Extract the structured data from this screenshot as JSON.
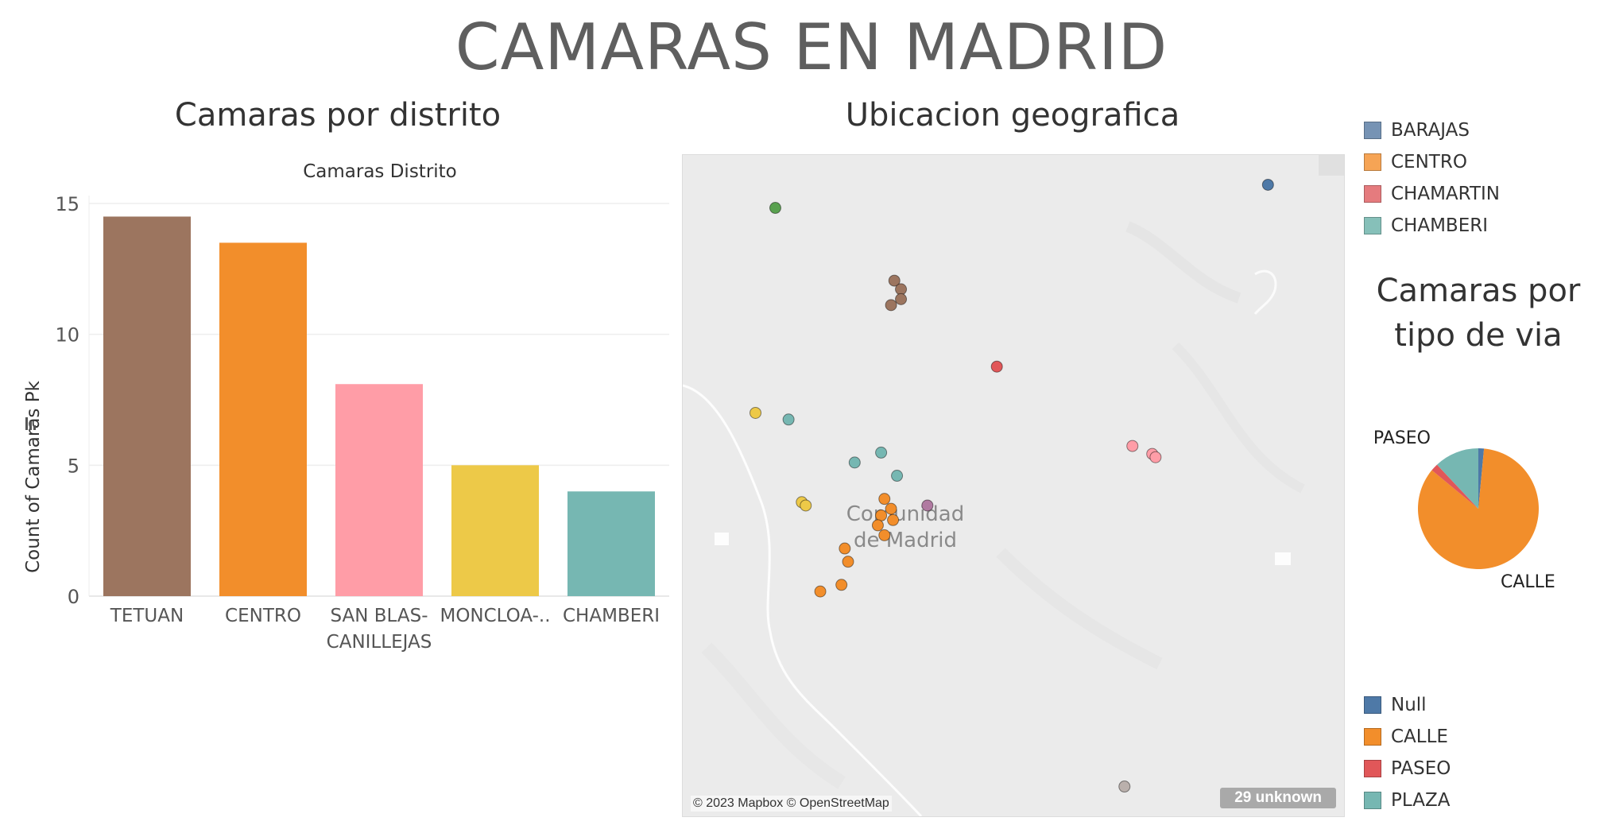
{
  "page": {
    "title": "CAMARAS EN MADRID"
  },
  "bar_section": {
    "title": "Camaras por distrito"
  },
  "map_section": {
    "title": "Ubicacion geografica",
    "place_label_line1": "Comunidad",
    "place_label_line2": "de Madrid",
    "attribution": "© 2023 Mapbox © OpenStreetMap",
    "unknown_badge": "29 unknown"
  },
  "district_legend": {
    "items": [
      {
        "label": "BARAJAS",
        "color": "#7693b4"
      },
      {
        "label": "CENTRO",
        "color": "#f6a455"
      },
      {
        "label": "CHAMARTIN",
        "color": "#e57b7e"
      },
      {
        "label": "CHAMBERI",
        "color": "#86c0b9"
      }
    ]
  },
  "pie_section": {
    "title_line1": "Camaras por",
    "title_line2": "tipo de via"
  },
  "via_legend": {
    "items": [
      {
        "label": "Null",
        "color": "#4e79a7"
      },
      {
        "label": "CALLE",
        "color": "#f28e2b"
      },
      {
        "label": "PASEO",
        "color": "#e15759"
      },
      {
        "label": "PLAZA",
        "color": "#76b7b2"
      }
    ]
  },
  "map_points": [
    {
      "district": "BARAJAS",
      "color": "#4e79a7"
    },
    {
      "district": "TETUAN",
      "color": "#9c755f"
    },
    {
      "district": "CENTRO",
      "color": "#f28e2b"
    },
    {
      "district": "CHAMARTIN",
      "color": "#e15759"
    },
    {
      "district": "CHAMBERI",
      "color": "#76b7b2"
    },
    {
      "district": "SAN BLAS-CANILLEJAS",
      "color": "#ff9da7"
    },
    {
      "district": "MONCLOA-ARAVACA",
      "color": "#edc948"
    },
    {
      "district": "OTHER-GREEN",
      "color": "#59a14f"
    },
    {
      "district": "OTHER-PURPLE",
      "color": "#b07aa1"
    },
    {
      "district": "OTHER-GREY",
      "color": "#bab0ac"
    }
  ],
  "chart_data": [
    {
      "type": "bar",
      "title": "Camaras Distrito",
      "ylabel": "Count of Camaras Pk",
      "xlabel": "",
      "categories": [
        "TETUAN",
        "CENTRO",
        "SAN BLAS-CANILLEJAS",
        "MONCLOA-..",
        "CHAMBERI"
      ],
      "category_lines": [
        [
          "TETUAN"
        ],
        [
          "CENTRO"
        ],
        [
          "SAN BLAS-",
          "CANILLEJAS"
        ],
        [
          "MONCLOA-.."
        ],
        [
          "CHAMBERI"
        ]
      ],
      "values": [
        14.5,
        13.5,
        8.1,
        5.0,
        4.0
      ],
      "colors": [
        "#9c755f",
        "#f28e2b",
        "#ff9da7",
        "#edc948",
        "#76b7b2"
      ],
      "yticks": [
        0,
        5,
        10,
        15
      ],
      "ylim": [
        0,
        15
      ],
      "grid": true,
      "legend": "none"
    },
    {
      "type": "pie",
      "title": "",
      "labels": [
        "Null",
        "CALLE",
        "PASEO",
        "PLAZA"
      ],
      "values": [
        1.5,
        84.5,
        2.0,
        12.0
      ],
      "colors": [
        "#4e79a7",
        "#f28e2b",
        "#e15759",
        "#76b7b2"
      ],
      "slice_labels_shown": [
        "PASEO",
        "CALLE"
      ],
      "legend": "bottom-right"
    },
    {
      "type": "scatter",
      "title": "",
      "xlabel": "",
      "ylabel": "",
      "series": [
        {
          "group": "BARAJAS",
          "x": [
            0.885
          ],
          "y": [
            0.955
          ]
        },
        {
          "group": "TETUAN",
          "x": [
            0.32,
            0.33,
            0.33,
            0.315
          ],
          "y": [
            0.81,
            0.797,
            0.782,
            0.773
          ]
        },
        {
          "group": "CENTRO",
          "x": [
            0.305,
            0.315,
            0.318,
            0.3,
            0.295,
            0.305,
            0.245,
            0.25,
            0.24,
            0.208
          ],
          "y": [
            0.48,
            0.465,
            0.448,
            0.455,
            0.44,
            0.425,
            0.405,
            0.385,
            0.35,
            0.34
          ]
        },
        {
          "group": "CHAMARTIN",
          "x": [
            0.475
          ],
          "y": [
            0.68
          ]
        },
        {
          "group": "CHAMBERI",
          "x": [
            0.16,
            0.26,
            0.3,
            0.324
          ],
          "y": [
            0.6,
            0.535,
            0.55,
            0.515
          ]
        },
        {
          "group": "SAN BLAS-CANILLEJAS",
          "x": [
            0.68,
            0.71,
            0.715
          ],
          "y": [
            0.56,
            0.548,
            0.543
          ]
        },
        {
          "group": "MONCLOA-ARAVACA",
          "x": [
            0.11,
            0.18,
            0.186
          ],
          "y": [
            0.61,
            0.475,
            0.47
          ]
        },
        {
          "group": "OTHER-GREEN",
          "x": [
            0.14
          ],
          "y": [
            0.92
          ]
        },
        {
          "group": "OTHER-PURPLE",
          "x": [
            0.37
          ],
          "y": [
            0.47
          ]
        },
        {
          "group": "OTHER-GREY",
          "x": [
            0.668
          ],
          "y": [
            0.045
          ]
        }
      ],
      "xlim": [
        0,
        1
      ],
      "ylim": [
        0,
        1
      ],
      "grid": false
    }
  ]
}
